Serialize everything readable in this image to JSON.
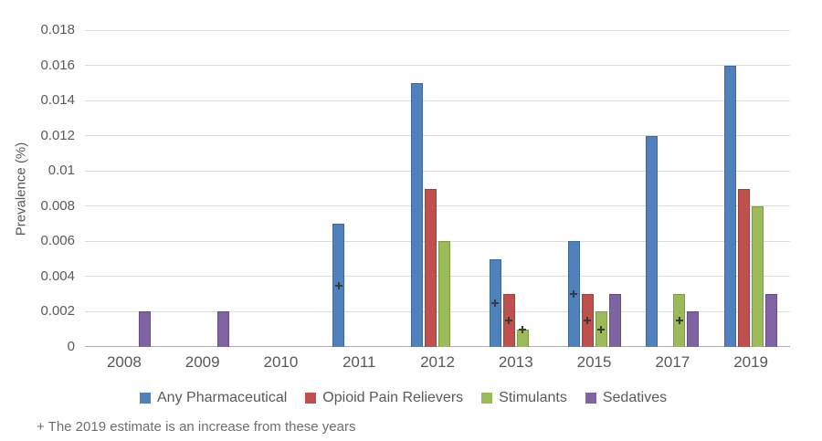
{
  "chart_data": {
    "type": "bar",
    "title": "",
    "xlabel": "",
    "ylabel": "Prevalence (%)",
    "ylim": [
      0,
      0.018
    ],
    "ytick_step": 0.002,
    "yticks": [
      "0",
      "0.002",
      "0.004",
      "0.006",
      "0.008",
      "0.01",
      "0.012",
      "0.014",
      "0.016",
      "0.018"
    ],
    "grid": true,
    "legend_position": "bottom",
    "categories": [
      "2008",
      "2009",
      "2010",
      "2011",
      "2012",
      "2013",
      "2015",
      "2017",
      "2019"
    ],
    "series": [
      {
        "name": "Any Pharmaceutical",
        "color": "#4F81BD",
        "border_color": "#3D6999",
        "values": [
          null,
          null,
          null,
          0.007,
          0.015,
          0.005,
          0.006,
          0.012,
          0.016
        ]
      },
      {
        "name": "Opioid Pain Relievers",
        "color": "#C0504D",
        "border_color": "#9E403E",
        "values": [
          null,
          null,
          null,
          null,
          0.009,
          0.003,
          0.003,
          null,
          0.009
        ]
      },
      {
        "name": "Stimulants",
        "color": "#9BBB59",
        "border_color": "#7E9A44",
        "values": [
          null,
          null,
          null,
          null,
          0.006,
          0.001,
          0.002,
          0.003,
          0.008
        ]
      },
      {
        "name": "Sedatives",
        "color": "#8064A2",
        "border_color": "#664E85",
        "values": [
          0.002,
          0.002,
          null,
          null,
          null,
          null,
          0.003,
          0.002,
          0.003
        ]
      }
    ],
    "plus_markers": [
      {
        "category": "2011",
        "series": "Any Pharmaceutical",
        "value": 0.0035
      },
      {
        "category": "2013",
        "series": "Any Pharmaceutical",
        "value": 0.0025
      },
      {
        "category": "2013",
        "series": "Opioid Pain Relievers",
        "value": 0.0015
      },
      {
        "category": "2013",
        "series": "Stimulants",
        "value": 0.001
      },
      {
        "category": "2015",
        "series": "Any Pharmaceutical",
        "value": 0.003
      },
      {
        "category": "2015",
        "series": "Opioid Pain Relievers",
        "value": 0.0015
      },
      {
        "category": "2015",
        "series": "Stimulants",
        "value": 0.001
      },
      {
        "category": "2017",
        "series": "Stimulants",
        "value": 0.0015
      }
    ],
    "footnote": "+ The 2019 estimate is an increase from these years",
    "colors": {
      "gridline": "#DCDCDC",
      "axis_line": "#ABABAB",
      "tick_text": "#595959",
      "footnote_text": "#6E6E6E",
      "marker": "#3A3A3A"
    }
  }
}
